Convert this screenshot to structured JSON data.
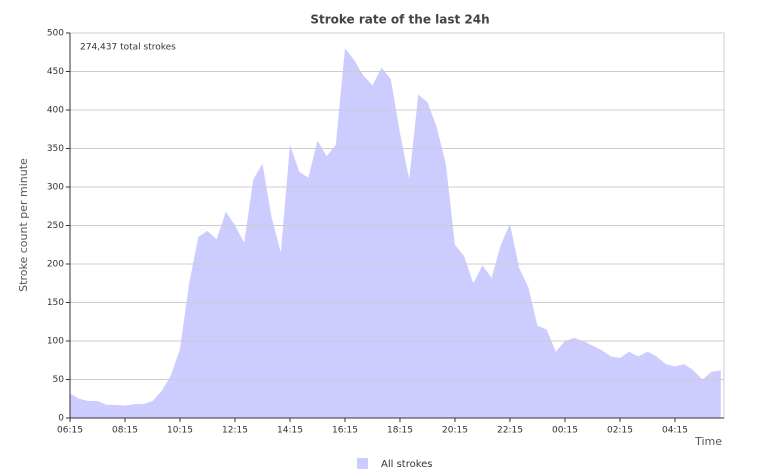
{
  "chart_data": {
    "type": "area",
    "title": "Stroke rate of the last 24h",
    "annotation": "274,437 total strokes",
    "x_label": "Time",
    "y_label": "Stroke count per minute",
    "x": [
      0,
      20,
      40,
      60,
      80,
      100,
      120,
      140,
      160,
      180,
      200,
      220,
      240,
      260,
      280,
      300,
      320,
      340,
      360,
      380,
      400,
      420,
      440,
      460,
      480,
      500,
      520,
      540,
      560,
      580,
      600,
      620,
      640,
      660,
      680,
      700,
      720,
      740,
      760,
      780,
      800,
      820,
      840,
      860,
      880,
      900,
      920,
      940,
      960,
      980,
      1000,
      1020,
      1040,
      1060,
      1080,
      1100,
      1120,
      1140,
      1160,
      1180,
      1200,
      1220,
      1240,
      1260,
      1280,
      1300,
      1320,
      1340,
      1360,
      1380,
      1400,
      1420
    ],
    "series": [
      {
        "name": "All strokes",
        "color": "#ccccff",
        "values": [
          32,
          25,
          22,
          22,
          17,
          17,
          16,
          18,
          18,
          22,
          35,
          55,
          90,
          175,
          235,
          243,
          232,
          268,
          250,
          228,
          310,
          330,
          260,
          215,
          355,
          320,
          312,
          360,
          340,
          355,
          480,
          465,
          445,
          432,
          455,
          440,
          370,
          310,
          420,
          410,
          378,
          330,
          225,
          210,
          175,
          198,
          182,
          225,
          252,
          195,
          170,
          120,
          115,
          86,
          100,
          104,
          100,
          94,
          88,
          80,
          78,
          86,
          80,
          86,
          80,
          70,
          67,
          70,
          62,
          50,
          60,
          62
        ]
      }
    ],
    "xlim": [
      0,
      1427
    ],
    "xticks": [
      {
        "value": 0,
        "label": "06:15"
      },
      {
        "value": 120,
        "label": "08:15"
      },
      {
        "value": 240,
        "label": "10:15"
      },
      {
        "value": 360,
        "label": "12:15"
      },
      {
        "value": 480,
        "label": "14:15"
      },
      {
        "value": 600,
        "label": "16:15"
      },
      {
        "value": 720,
        "label": "18:15"
      },
      {
        "value": 840,
        "label": "20:15"
      },
      {
        "value": 960,
        "label": "22:15"
      },
      {
        "value": 1080,
        "label": "00:15"
      },
      {
        "value": 1200,
        "label": "02:15"
      },
      {
        "value": 1320,
        "label": "04:15"
      }
    ],
    "ylim": [
      0,
      500
    ],
    "yticks": [
      0,
      50,
      100,
      150,
      200,
      250,
      300,
      350,
      400,
      450,
      500
    ],
    "grid": true
  }
}
